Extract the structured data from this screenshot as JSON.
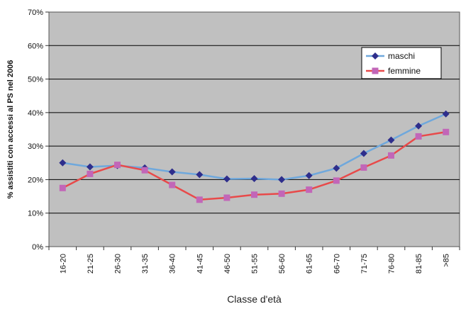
{
  "chart_data": {
    "type": "line",
    "xlabel": "Classe d'età",
    "ylabel": "% assistiti con accessi al PS nel 2006",
    "categories": [
      "16-20",
      "21-25",
      "26-30",
      "31-35",
      "36-40",
      "41-45",
      "46-50",
      "51-55",
      "56-60",
      "61-65",
      "66-70",
      "71-75",
      "76-80",
      "81-85",
      ">85"
    ],
    "ylim": [
      0,
      70
    ],
    "yticks": [
      "0%",
      "10%",
      "20%",
      "30%",
      "40%",
      "50%",
      "60%",
      "70%"
    ],
    "grid": true,
    "legend_position": "top-right",
    "plot_background": "#c0c0c0",
    "series": [
      {
        "name": "maschi",
        "line_color": "#6fa8dc",
        "marker_color": "#2e2e8c",
        "marker": "diamond",
        "values": [
          25.0,
          23.8,
          24.2,
          23.5,
          22.3,
          21.5,
          20.2,
          20.3,
          20.0,
          21.2,
          23.4,
          27.8,
          31.8,
          36.0,
          39.6
        ]
      },
      {
        "name": "femmine",
        "line_color": "#e84a4a",
        "marker_color": "#c266b8",
        "marker": "square",
        "values": [
          17.5,
          21.7,
          24.4,
          22.8,
          18.4,
          14.0,
          14.6,
          15.5,
          15.8,
          17.0,
          19.7,
          23.6,
          27.2,
          32.9,
          34.2
        ]
      }
    ]
  }
}
